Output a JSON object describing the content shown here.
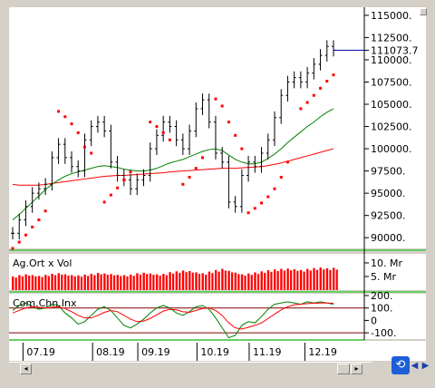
{
  "price_axis": {
    "labels": [
      "115000.",
      "112500.",
      "111073.7",
      "110000.",
      "107500.",
      "105000.",
      "102500.",
      "100000.",
      "97500.",
      "95000.",
      "92500.",
      "90000."
    ],
    "values": [
      115000,
      112500,
      111073.7,
      110000,
      107500,
      105000,
      102500,
      100000,
      97500,
      95000,
      92500,
      90000
    ],
    "last_value_label": "111073.7"
  },
  "volume_panel": {
    "title": "Ag.Ort x Vol",
    "axis_labels": [
      "10. Mr",
      "5. Mr"
    ],
    "axis_values": [
      10,
      5
    ]
  },
  "cci_panel": {
    "title": "Com.Chn.Inx",
    "axis_labels": [
      "200.",
      "100.",
      "0",
      "-100."
    ],
    "axis_values": [
      200,
      100,
      0,
      -100
    ]
  },
  "date_labels": [
    "07.19",
    "08.19",
    "09.19",
    "10.19",
    "11.19",
    "12.19"
  ],
  "icons": {
    "refresh": "refresh-icon",
    "nav_left": "arrow-left-icon",
    "nav_right": "arrow-right-icon",
    "scroll_left": "scroll-left-icon",
    "scroll_right": "scroll-right-icon"
  },
  "colors": {
    "background": "#ffffff",
    "frame": "#d4d0c8",
    "bars": "#000000",
    "sar": "#ff0000",
    "ma_short": "#008000",
    "ma_long": "#ff0000",
    "volume": "#ff0000",
    "cci_main": "#008000",
    "cci_signal": "#ff0000",
    "level_lines": "#800000",
    "panel_border": "#00cc00",
    "price_marker": "#0000aa"
  },
  "chart_data": {
    "type": "line",
    "title": "",
    "xlabel": "",
    "ylabel": "",
    "ylim": [
      89000,
      115500
    ],
    "x_ticks": [
      "07.19",
      "08.19",
      "09.19",
      "10.19",
      "11.19",
      "12.19"
    ],
    "last_close": 111073.7,
    "series": [
      {
        "kind": "ohlc_close_approx",
        "values": [
          90500,
          92000,
          93500,
          95000,
          95500,
          96000,
          99000,
          100500,
          99000,
          98000,
          97500,
          101000,
          102500,
          103000,
          102000,
          98500,
          97000,
          96500,
          95500,
          96500,
          97000,
          100000,
          101500,
          103000,
          102500,
          101000,
          100000,
          102000,
          104500,
          105500,
          103000,
          99500,
          98500,
          94000,
          93500,
          97000,
          98500,
          98000,
          99500,
          101000,
          103500,
          106000,
          107500,
          108000,
          107500,
          108500,
          109500,
          110500,
          111500,
          111073.7
        ]
      },
      {
        "kind": "ma_short",
        "values": [
          92000,
          92600,
          93300,
          94000,
          94700,
          95400,
          96000,
          96500,
          96900,
          97200,
          97400,
          97600,
          97800,
          98000,
          98100,
          98000,
          97900,
          97700,
          97600,
          97500,
          97500,
          97600,
          97800,
          98100,
          98400,
          98600,
          98800,
          99100,
          99400,
          99700,
          99900,
          100000,
          99800,
          99300,
          98800,
          98500,
          98300,
          98300,
          98500,
          98900,
          99400,
          100000,
          100700,
          101300,
          101900,
          102500,
          103000,
          103600,
          104100,
          104500
        ]
      },
      {
        "kind": "ma_long",
        "values": [
          96000,
          95900,
          95900,
          95900,
          95900,
          96000,
          96100,
          96200,
          96300,
          96400,
          96500,
          96600,
          96700,
          96800,
          96900,
          96950,
          97000,
          97000,
          97050,
          97100,
          97150,
          97200,
          97250,
          97300,
          97400,
          97450,
          97500,
          97550,
          97600,
          97650,
          97700,
          97750,
          97800,
          97800,
          97800,
          97850,
          97900,
          97950,
          98000,
          98100,
          98250,
          98400,
          98600,
          98800,
          99000,
          99200,
          99400,
          99600,
          99800,
          100000
        ]
      }
    ],
    "volume_panel": {
      "type": "bar",
      "ylim": [
        0,
        12
      ],
      "values": [
        5,
        5.5,
        5.8,
        5.5,
        5.2,
        5.6,
        6,
        6.2,
        5.8,
        5.5,
        5.4,
        5.7,
        6,
        6.3,
        6.1,
        5.9,
        5.6,
        5.5,
        5.7,
        6.2,
        6.4,
        6.1,
        5.8,
        6,
        6.6,
        6.9,
        7.2,
        7,
        6.5,
        6.2,
        6.8,
        7.4,
        7.8,
        7.1,
        6.4,
        5.8,
        6.1,
        6.5,
        6.9,
        7.3,
        7.6,
        7.8,
        7.9,
        7.7,
        7.4,
        7.8,
        8.1,
        8.3,
        8,
        8.2
      ]
    },
    "cci_panel": {
      "type": "line",
      "ylim": [
        -150,
        200
      ],
      "levels": [
        100,
        -100
      ],
      "series": [
        {
          "kind": "cci",
          "values": [
            80,
            120,
            140,
            110,
            90,
            100,
            130,
            120,
            60,
            20,
            -30,
            -10,
            40,
            90,
            110,
            80,
            20,
            -40,
            -60,
            -30,
            10,
            60,
            100,
            120,
            100,
            60,
            40,
            70,
            110,
            120,
            90,
            20,
            -60,
            -140,
            -120,
            -40,
            -10,
            -20,
            30,
            90,
            130,
            140,
            150,
            140,
            130,
            150,
            140,
            150,
            140,
            130
          ]
        },
        {
          "kind": "cci_signal",
          "values": [
            60,
            80,
            100,
            110,
            105,
            100,
            105,
            110,
            95,
            70,
            40,
            20,
            20,
            40,
            65,
            80,
            70,
            40,
            10,
            -10,
            -5,
            15,
            45,
            75,
            90,
            85,
            70,
            65,
            80,
            95,
            100,
            80,
            40,
            -20,
            -60,
            -70,
            -55,
            -40,
            -20,
            15,
            50,
            85,
            110,
            125,
            130,
            135,
            138,
            140,
            140,
            138
          ]
        }
      ]
    },
    "sar_points": [
      [
        0,
        88800
      ],
      [
        1,
        89500
      ],
      [
        2,
        90300
      ],
      [
        3,
        91200
      ],
      [
        4,
        92000
      ],
      [
        5,
        93000
      ],
      [
        7,
        104200
      ],
      [
        8,
        103600
      ],
      [
        9,
        102800
      ],
      [
        10,
        101800
      ],
      [
        11,
        100200
      ],
      [
        12,
        99500
      ],
      [
        14,
        94000
      ],
      [
        15,
        94800
      ],
      [
        16,
        95600
      ],
      [
        17,
        96500
      ],
      [
        18,
        97400
      ],
      [
        21,
        103000
      ],
      [
        22,
        102500
      ],
      [
        23,
        101800
      ],
      [
        24,
        101000
      ],
      [
        26,
        96000
      ],
      [
        27,
        96800
      ],
      [
        28,
        97800
      ],
      [
        29,
        99000
      ],
      [
        31,
        105600
      ],
      [
        32,
        104800
      ],
      [
        33,
        103000
      ],
      [
        34,
        101500
      ],
      [
        35,
        100000
      ],
      [
        36,
        92800
      ],
      [
        37,
        93300
      ],
      [
        38,
        93900
      ],
      [
        39,
        94600
      ],
      [
        40,
        95500
      ],
      [
        41,
        96800
      ],
      [
        42,
        98500
      ],
      [
        44,
        104500
      ],
      [
        45,
        105200
      ],
      [
        46,
        106000
      ],
      [
        47,
        106800
      ],
      [
        48,
        107600
      ],
      [
        49,
        108300
      ]
    ]
  }
}
